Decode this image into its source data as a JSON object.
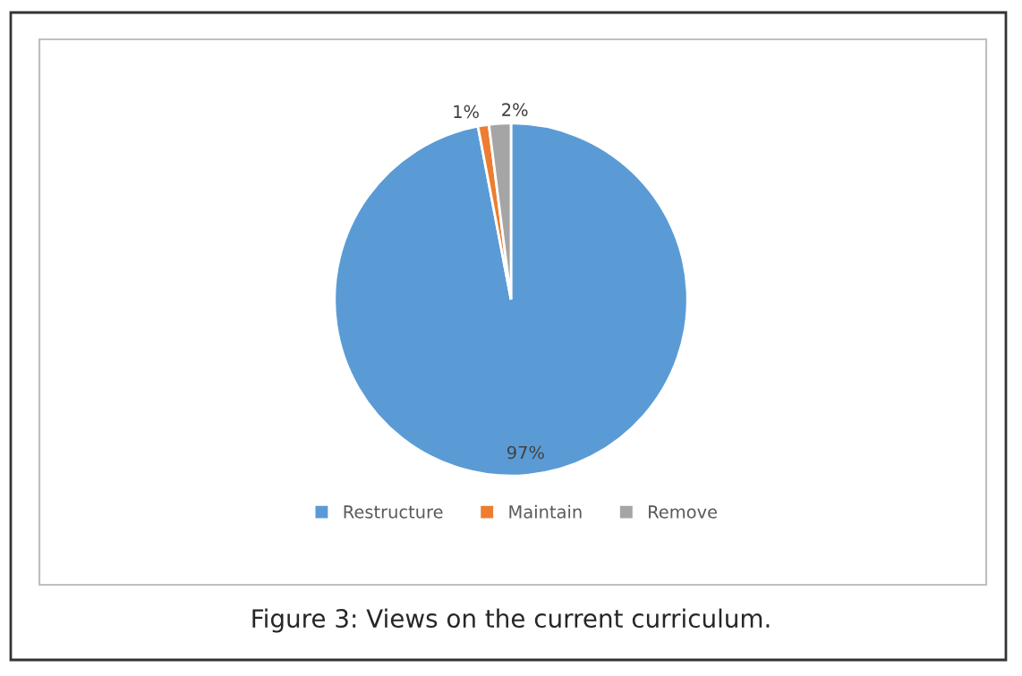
{
  "chart_data": {
    "type": "pie",
    "categories": [
      "Restructure",
      "Maintain",
      "Remove"
    ],
    "values": [
      97,
      1,
      2
    ],
    "colors": [
      "#5b9bd5",
      "#ed7d31",
      "#a5a5a5"
    ],
    "value_labels": [
      "97%",
      "1%",
      "2%"
    ],
    "legend": "bottom",
    "annotations": [
      "Figure 3: Views on the current curriculum."
    ]
  }
}
